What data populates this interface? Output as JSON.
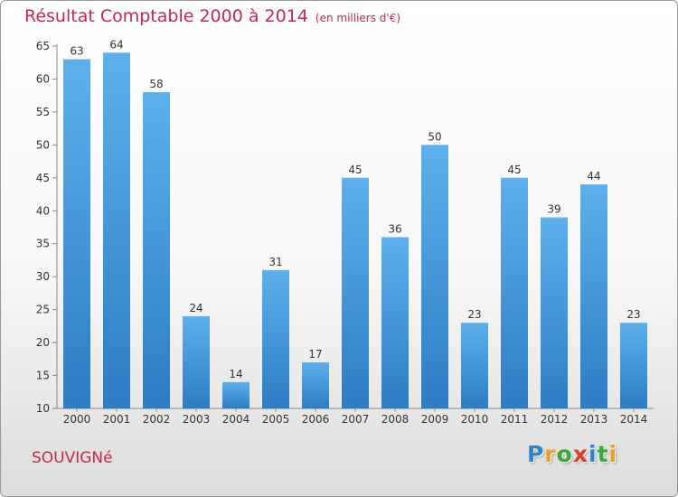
{
  "chart_data": {
    "type": "bar",
    "title": "Résultat Comptable 2000 à 2014",
    "subtitle": "(en milliers d'€)",
    "categories": [
      "2000",
      "2001",
      "2002",
      "2003",
      "2004",
      "2005",
      "2006",
      "2007",
      "2008",
      "2009",
      "2010",
      "2011",
      "2012",
      "2013",
      "2014"
    ],
    "values": [
      63,
      64,
      58,
      24,
      14,
      31,
      17,
      45,
      36,
      50,
      23,
      45,
      39,
      44,
      23
    ],
    "ylim": [
      10,
      65
    ],
    "yticks": [
      10,
      15,
      20,
      25,
      30,
      35,
      40,
      45,
      50,
      55,
      60,
      65
    ],
    "grid": false,
    "bar_color": "#4a9de0"
  },
  "place_name": "SOUVIGNé",
  "logo": {
    "letters": [
      "P",
      "r",
      "o",
      "x",
      "i",
      "t",
      "i"
    ],
    "colors": [
      "#2e84c9",
      "#f0a020",
      "#3aaa3a",
      "#e23a2a",
      "#2e84c9",
      "#3aaa3a",
      "#f0a020"
    ]
  }
}
